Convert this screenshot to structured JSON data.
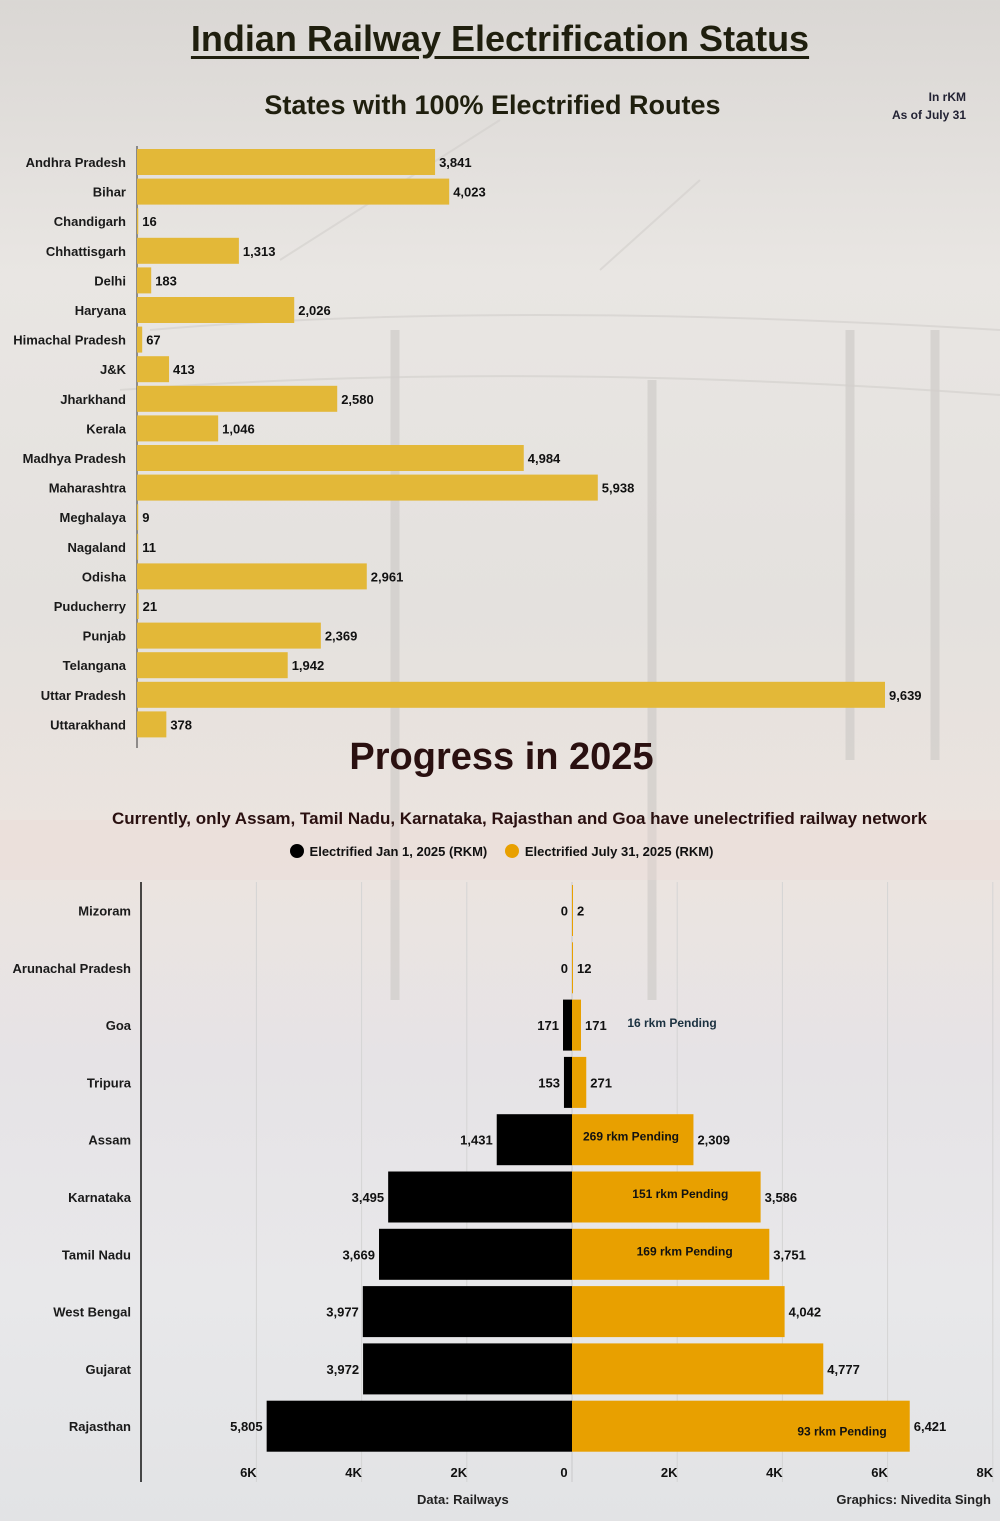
{
  "header": {
    "title": "Indian Railway Electrification Status",
    "subtitle": "States with 100% Electrified Routes",
    "unit_line1": "In rKM",
    "unit_line2": "As of July 31"
  },
  "progress": {
    "title": "Progress in 2025",
    "note": "Currently, only Assam, Tamil Nadu, Karnataka, Rajasthan and Goa have unelectrified railway network",
    "legend": [
      {
        "label": "Electrified Jan 1, 2025 (RKM)",
        "color": "#000000"
      },
      {
        "label": "Electrified July 31, 2025 (RKM)",
        "color": "#e8a000"
      }
    ]
  },
  "footer": {
    "source": "Data: Railways",
    "credit": "Graphics: Nivedita Singh"
  },
  "colors": {
    "bar_top": "#e3b838",
    "jan": "#000000",
    "july": "#e8a000"
  },
  "chart_data": [
    {
      "type": "bar",
      "orientation": "horizontal",
      "title": "States with 100% Electrified Routes",
      "unit": "In rKM",
      "categories": [
        "Andhra Pradesh",
        "Bihar",
        "Chandigarh",
        "Chhattisgarh",
        "Delhi",
        "Haryana",
        "Himachal Pradesh",
        "J&K",
        "Jharkhand",
        "Kerala",
        "Madhya Pradesh",
        "Maharashtra",
        "Meghalaya",
        "Nagaland",
        "Odisha",
        "Puducherry",
        "Punjab",
        "Telangana",
        "Uttar Pradesh",
        "Uttarakhand"
      ],
      "values": [
        3841,
        4023,
        16,
        1313,
        183,
        2026,
        67,
        413,
        2580,
        1046,
        4984,
        5938,
        9,
        11,
        2961,
        21,
        2369,
        1942,
        9639,
        378
      ],
      "value_labels": [
        "3,841",
        "4,023",
        "16",
        "1,313",
        "183",
        "2,026",
        "67",
        "413",
        "2,580",
        "1,046",
        "4,984",
        "5,938",
        "9",
        "11",
        "2,961",
        "21",
        "2,369",
        "1,942",
        "9,639",
        "378"
      ],
      "xlim": [
        0,
        10000
      ]
    },
    {
      "type": "bar",
      "orientation": "horizontal-diverging",
      "title": "Progress in 2025",
      "categories": [
        "Mizoram",
        "Arunachal Pradesh",
        "Goa",
        "Tripura",
        "Assam",
        "Karnataka",
        "Tamil Nadu",
        "West Bengal",
        "Gujarat",
        "Rajasthan"
      ],
      "series": [
        {
          "name": "Electrified Jan 1, 2025 (RKM)",
          "side": "left",
          "values": [
            0,
            0,
            171,
            153,
            1431,
            3495,
            3669,
            3977,
            3972,
            5805
          ],
          "value_labels": [
            "0",
            "0",
            "171",
            "153",
            "1,431",
            "3,495",
            "3,669",
            "3,977",
            "3,972",
            "5,805"
          ]
        },
        {
          "name": "Electrified July 31, 2025 (RKM)",
          "side": "right",
          "values": [
            2,
            12,
            171,
            271,
            2309,
            3586,
            3751,
            4042,
            4777,
            6421
          ],
          "value_labels": [
            "2",
            "12",
            "171",
            "271",
            "2,309",
            "3,586",
            "3,751",
            "4,042",
            "4,777",
            "6,421"
          ]
        }
      ],
      "annotations": [
        {
          "category": "Goa",
          "text": "16 rkm Pending"
        },
        {
          "category": "Assam",
          "text": "269 rkm Pending"
        },
        {
          "category": "Karnataka",
          "text": "151 rkm Pending"
        },
        {
          "category": "Tamil Nadu",
          "text": "169 rkm Pending"
        },
        {
          "category": "Rajasthan",
          "text": "93 rkm Pending"
        }
      ],
      "xlim": [
        -8000,
        8000
      ],
      "ticks": [
        {
          "value": -6000,
          "label": "6K"
        },
        {
          "value": -4000,
          "label": "4K"
        },
        {
          "value": -2000,
          "label": "2K"
        },
        {
          "value": 0,
          "label": "0"
        },
        {
          "value": 2000,
          "label": "2K"
        },
        {
          "value": 4000,
          "label": "4K"
        },
        {
          "value": 6000,
          "label": "6K"
        },
        {
          "value": 8000,
          "label": "8K"
        }
      ],
      "grid": true
    }
  ]
}
